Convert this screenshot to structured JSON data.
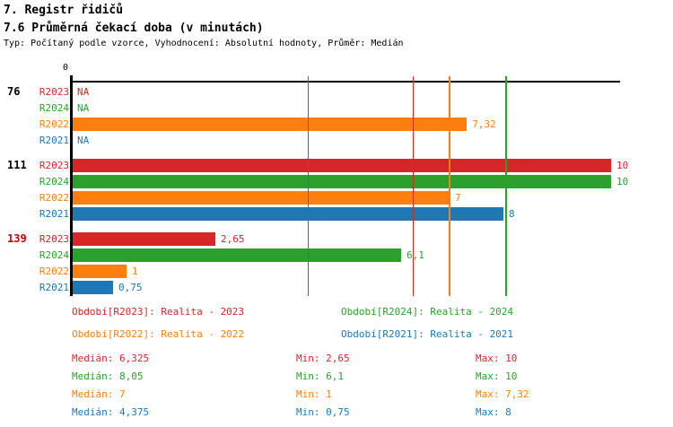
{
  "header": {
    "title": "7. Registr řidičů",
    "subtitle": "7.6 Průměrná čekací doba (v minutách)",
    "meta": "Typ: Počítaný podle vzorce, Vyhodnocení: Absolutní hodnoty, Průměr: Medián"
  },
  "colors": {
    "R2023": "#d62728",
    "R2024": "#2ca02c",
    "R2022": "#ff7f0e",
    "R2021": "#1f77b4",
    "group_highlight": "#cc0000",
    "axis": "#000000"
  },
  "chart_data": {
    "type": "bar",
    "orientation": "horizontal",
    "title": "7.6 Průměrná čekací doba (v minutách)",
    "x_axis": {
      "origin_label": "0",
      "xlim": [
        0,
        10.2
      ],
      "ticks_shown": [
        "0"
      ]
    },
    "series_order": [
      "R2023",
      "R2024",
      "R2022",
      "R2021"
    ],
    "groups": [
      {
        "label": "76",
        "label_color": "#000000",
        "bars": [
          {
            "series": "R2023",
            "value": null,
            "display": "NA"
          },
          {
            "series": "R2024",
            "value": null,
            "display": "NA"
          },
          {
            "series": "R2022",
            "value": 7.32,
            "display": "7,32"
          },
          {
            "series": "R2021",
            "value": null,
            "display": "NA"
          }
        ]
      },
      {
        "label": "111",
        "label_color": "#000000",
        "bars": [
          {
            "series": "R2023",
            "value": 10,
            "display": "10"
          },
          {
            "series": "R2024",
            "value": 10,
            "display": "10"
          },
          {
            "series": "R2022",
            "value": 7,
            "display": "7"
          },
          {
            "series": "R2021",
            "value": 8,
            "display": "8"
          }
        ]
      },
      {
        "label": "139",
        "label_color": "#cc0000",
        "bars": [
          {
            "series": "R2023",
            "value": 2.65,
            "display": "2,65"
          },
          {
            "series": "R2024",
            "value": 6.1,
            "display": "6,1"
          },
          {
            "series": "R2022",
            "value": 1,
            "display": "1"
          },
          {
            "series": "R2021",
            "value": 0.75,
            "display": "0,75"
          }
        ]
      }
    ],
    "median_lines": [
      {
        "series": "R2023",
        "value": 6.325
      },
      {
        "series": "R2024",
        "value": 8.05
      },
      {
        "series": "R2022",
        "value": 7
      },
      {
        "series": "R2021",
        "value": 4.375
      }
    ]
  },
  "legend": [
    {
      "series": "R2023",
      "label": "Období[R2023]: Realita - 2023"
    },
    {
      "series": "R2024",
      "label": "Období[R2024]: Realita - 2024"
    },
    {
      "series": "R2022",
      "label": "Období[R2022]: Realita - 2022"
    },
    {
      "series": "R2021",
      "label": "Období[R2021]: Realita - 2021"
    }
  ],
  "stats": [
    {
      "series": "R2023",
      "median": "Medián: 6,325",
      "min": "Min: 2,65",
      "max": "Max: 10"
    },
    {
      "series": "R2024",
      "median": "Medián: 8,05",
      "min": "Min: 6,1",
      "max": "Max: 10"
    },
    {
      "series": "R2022",
      "median": "Medián: 7",
      "min": "Min: 1",
      "max": "Max: 7,32"
    },
    {
      "series": "R2021",
      "median": "Medián: 4,375",
      "min": "Min: 0,75",
      "max": "Max: 8"
    }
  ]
}
